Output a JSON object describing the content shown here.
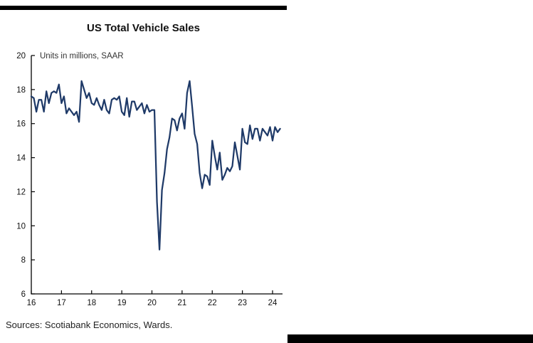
{
  "panel": {
    "title": "US Total Vehicle Sales",
    "subtitle": "Units in millions, SAAR",
    "sources": "Sources: Scotiabank Economics, Wards."
  },
  "colors": {
    "line": "#1f3a68",
    "axis": "#000000",
    "divider_bar": "#000000"
  },
  "chart_data": {
    "type": "line",
    "title": "US Total Vehicle Sales",
    "ylabel": "Units in millions, SAAR",
    "xlabel": "",
    "ylim": [
      6,
      20
    ],
    "y_ticks": [
      20,
      18,
      16,
      14,
      12,
      10,
      8,
      6
    ],
    "x_ticks": [
      "16",
      "17",
      "18",
      "19",
      "20",
      "21",
      "22",
      "23",
      "24"
    ],
    "grid": false,
    "legend": "none",
    "x_start": "2016-01",
    "frequency": "monthly",
    "series": [
      {
        "name": "US total vehicle sales (millions, SAAR)",
        "values": [
          17.6,
          17.5,
          16.7,
          17.4,
          17.4,
          16.7,
          17.9,
          17.2,
          17.8,
          17.9,
          17.8,
          18.3,
          17.2,
          17.6,
          16.6,
          16.9,
          16.7,
          16.5,
          16.7,
          16.1,
          18.5,
          18.0,
          17.5,
          17.8,
          17.2,
          17.1,
          17.5,
          17.1,
          16.8,
          17.4,
          16.8,
          16.6,
          17.4,
          17.5,
          17.4,
          17.6,
          16.7,
          16.5,
          17.5,
          16.4,
          17.3,
          17.3,
          16.8,
          17.0,
          17.2,
          16.6,
          17.1,
          16.7,
          16.8,
          16.8,
          11.4,
          8.6,
          12.1,
          13.1,
          14.5,
          15.2,
          16.3,
          16.2,
          15.6,
          16.3,
          16.6,
          15.7,
          17.8,
          18.5,
          17.0,
          15.4,
          14.8,
          13.1,
          12.2,
          13.0,
          12.9,
          12.4,
          15.0,
          14.1,
          13.3,
          14.3,
          12.7,
          13.0,
          13.4,
          13.2,
          13.5,
          14.9,
          14.1,
          13.3,
          15.7,
          14.9,
          14.8,
          15.9,
          15.1,
          15.7,
          15.7,
          15.0,
          15.7,
          15.5,
          15.3,
          15.8,
          15.0,
          15.8,
          15.5,
          15.7
        ]
      }
    ]
  }
}
